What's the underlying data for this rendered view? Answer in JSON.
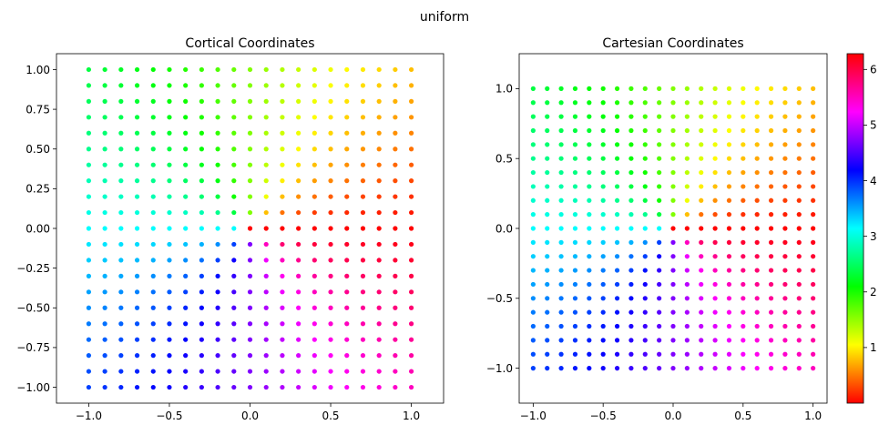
{
  "figure": {
    "suptitle": "uniform"
  },
  "chart_data": [
    {
      "type": "scatter",
      "title": "Cortical Coordinates",
      "xlabel": "",
      "ylabel": "",
      "xlim": [
        -1.2,
        1.2
      ],
      "ylim": [
        -1.1,
        1.1
      ],
      "grid": false,
      "x_ticks": [
        -1.0,
        -0.5,
        0.0,
        0.5,
        1.0
      ],
      "x_tick_labels": [
        "−1.0",
        "−0.5",
        "0.0",
        "0.5",
        "1.0"
      ],
      "y_ticks": [
        -1.0,
        -0.75,
        -0.5,
        -0.25,
        0.0,
        0.25,
        0.5,
        0.75,
        1.0
      ],
      "y_tick_labels": [
        "−1.00",
        "−0.75",
        "−0.50",
        "−0.25",
        "0.00",
        "0.25",
        "0.50",
        "0.75",
        "1.00"
      ],
      "points": {
        "grid": "uniform",
        "x_range": [
          -1.0,
          1.0
        ],
        "y_range": [
          -1.0,
          1.0
        ],
        "n_per_side": 21,
        "color_value": "polar angle atan2(y, x) mapped to [0, 2π)"
      }
    },
    {
      "type": "scatter",
      "title": "Cartesian Coordinates",
      "xlabel": "",
      "ylabel": "",
      "xlim": [
        -1.1,
        1.1
      ],
      "ylim": [
        -1.25,
        1.25
      ],
      "grid": false,
      "x_ticks": [
        -1.0,
        -0.5,
        0.0,
        0.5,
        1.0
      ],
      "x_tick_labels": [
        "−1.0",
        "−0.5",
        "0.0",
        "0.5",
        "1.0"
      ],
      "y_ticks": [
        -1.0,
        -0.5,
        0.0,
        0.5,
        1.0
      ],
      "y_tick_labels": [
        "−1.0",
        "−0.5",
        "0.0",
        "0.5",
        "1.0"
      ],
      "points": {
        "grid": "uniform",
        "x_range": [
          -1.0,
          1.0
        ],
        "y_range": [
          -1.0,
          1.0
        ],
        "n_per_side": 21,
        "color_value": "polar angle atan2(y, x) mapped to [0, 2π)"
      }
    }
  ],
  "colorbar": {
    "colormap": "hsv",
    "range": [
      0.0,
      6.2832
    ],
    "ticks": [
      1,
      2,
      3,
      4,
      5,
      6
    ],
    "tick_labels": [
      "1",
      "2",
      "3",
      "4",
      "5",
      "6"
    ]
  }
}
